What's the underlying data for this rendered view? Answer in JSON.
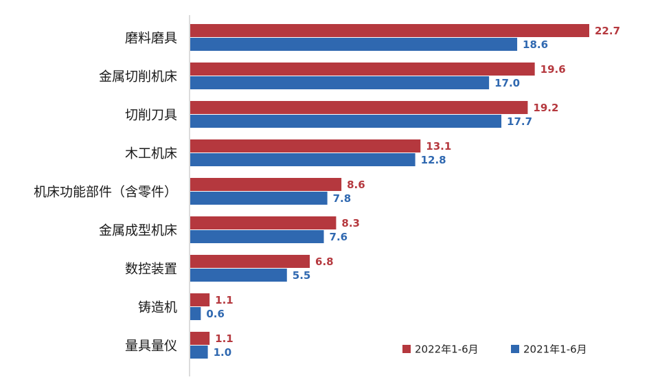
{
  "chart_data": {
    "type": "bar",
    "orientation": "horizontal",
    "categories": [
      "磨料磨具",
      "金属切削机床",
      "切削刀具",
      "木工机床",
      "机床功能部件（含零件）",
      "金属成型机床",
      "数控装置",
      "铸造机",
      "量具量仪"
    ],
    "series": [
      {
        "name": "2022年1-6月",
        "color": "#b5383e",
        "values": [
          22.7,
          19.6,
          19.2,
          13.1,
          8.6,
          8.3,
          6.8,
          1.1,
          1.1
        ]
      },
      {
        "name": "2021年1-6月",
        "color": "#2f68b0",
        "values": [
          18.6,
          17.0,
          17.7,
          12.8,
          7.8,
          7.6,
          5.5,
          0.6,
          1.0
        ]
      }
    ],
    "value_labels": [
      [
        "22.7",
        "19.6",
        "19.2",
        "13.1",
        "8.6",
        "8.3",
        "6.8",
        "1.1",
        "1.1"
      ],
      [
        "18.6",
        "17.0",
        "17.7",
        "12.8",
        "7.8",
        "7.6",
        "5.5",
        "0.6",
        "1.0"
      ]
    ],
    "xlim": [
      0,
      25
    ],
    "grid": false,
    "legend_position": "bottom-right",
    "title": "",
    "xlabel": "",
    "ylabel": ""
  }
}
